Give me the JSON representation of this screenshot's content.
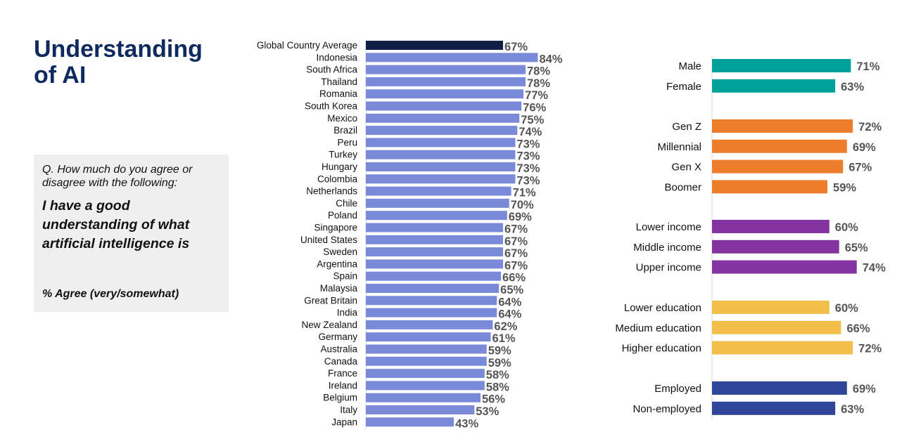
{
  "title_line1": "Understanding",
  "title_line2": "of AI",
  "question": "Q. How much do you agree or disagree with the following:",
  "statement": "I have a good understanding of what artificial intelligence is",
  "agree_note": "% Agree (very/somewhat)",
  "colors": {
    "global": "#0f1f45",
    "countries": "#7b8ad8",
    "gender": "#00a19a",
    "generation": "#ee7d2b",
    "income": "#8434a0",
    "education": "#f2c04a",
    "employment": "#2f4598"
  },
  "chart_data": [
    {
      "type": "bar",
      "orientation": "horizontal",
      "value_suffix": "%",
      "xlim": [
        0,
        100
      ],
      "grid": false,
      "categories": [
        "Global Country Average",
        "Indonesia",
        "South Africa",
        "Thailand",
        "Romania",
        "South Korea",
        "Mexico",
        "Brazil",
        "Peru",
        "Turkey",
        "Hungary",
        "Colombia",
        "Netherlands",
        "Chile",
        "Poland",
        "Singapore",
        "United States",
        "Sweden",
        "Argentina",
        "Spain",
        "Malaysia",
        "Great Britain",
        "India",
        "New Zealand",
        "Germany",
        "Australia",
        "Canada",
        "France",
        "Ireland",
        "Belgium",
        "Italy",
        "Japan"
      ],
      "values": [
        67,
        84,
        78,
        78,
        77,
        76,
        75,
        74,
        73,
        73,
        73,
        73,
        71,
        70,
        69,
        67,
        67,
        67,
        67,
        66,
        65,
        64,
        64,
        62,
        61,
        59,
        59,
        58,
        58,
        56,
        53,
        43
      ]
    },
    {
      "type": "bar",
      "orientation": "horizontal",
      "value_suffix": "%",
      "xlim": [
        0,
        100
      ],
      "grid": false,
      "groups": [
        {
          "color_key": "gender",
          "categories": [
            "Male",
            "Female"
          ],
          "values": [
            71,
            63
          ]
        },
        {
          "color_key": "generation",
          "categories": [
            "Gen Z",
            "Millennial",
            "Gen X",
            "Boomer"
          ],
          "values": [
            72,
            69,
            67,
            59
          ]
        },
        {
          "color_key": "income",
          "categories": [
            "Lower income",
            "Middle income",
            "Upper income"
          ],
          "values": [
            60,
            65,
            74
          ]
        },
        {
          "color_key": "education",
          "categories": [
            "Lower education",
            "Medium education",
            "Higher education"
          ],
          "values": [
            60,
            66,
            72
          ]
        },
        {
          "color_key": "employment",
          "categories": [
            "Employed",
            "Non-employed"
          ],
          "values": [
            69,
            63
          ]
        }
      ]
    }
  ]
}
